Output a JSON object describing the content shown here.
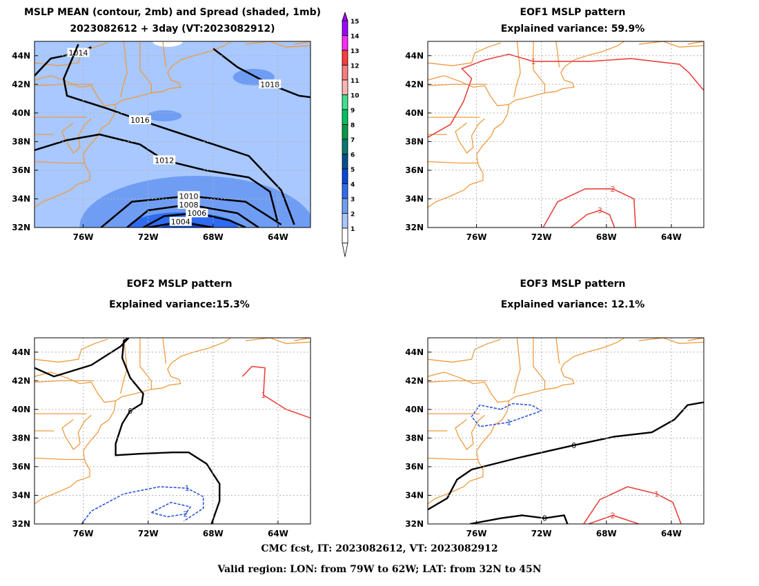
{
  "panels": [
    {
      "id": "mslp",
      "title_line1": "MSLP MEAN (contour, 2mb) and Spread (shaded, 1mb)",
      "title_line2": "2023082612 + 3day (VT:2023082912)"
    },
    {
      "id": "eof1",
      "title_line1": "EOF1 MSLP pattern",
      "title_line2": "Explained variance: 59.9%"
    },
    {
      "id": "eof2",
      "title_line1": "EOF2 MSLP pattern",
      "title_line2": "Explained variance:15.3%"
    },
    {
      "id": "eof3",
      "title_line1": "EOF3 MSLP pattern",
      "title_line2": "Explained variance: 12.1%"
    }
  ],
  "footer": {
    "line1": "CMC fcst, IT: 2023082612, VT: 2023082912",
    "line2": "Valid region: LON: from 79W to 62W; LAT: from 32N to 45N"
  },
  "chart_data": [
    {
      "type": "heatmap",
      "title": "MSLP MEAN (contour, 2mb) and Spread (shaded, 1mb)",
      "subtitle": "2023082612 + 3day (VT:2023082912)",
      "xlim": [
        -79,
        -62
      ],
      "ylim": [
        32,
        45
      ],
      "x_ticks": [
        "76W",
        "72W",
        "68W",
        "64W"
      ],
      "y_ticks": [
        "44N",
        "42N",
        "40N",
        "38N",
        "36N",
        "34N",
        "32N"
      ],
      "grid": true,
      "colorbar": {
        "levels": [
          1,
          2,
          3,
          4,
          5,
          6,
          7,
          8,
          9,
          10,
          11,
          12,
          13,
          14,
          15
        ],
        "colors": [
          "#ffffff",
          "#a8c8ff",
          "#6f9df4",
          "#2f6cf0",
          "#0a47d8",
          "#00508c",
          "#007a6e",
          "#009a46",
          "#00c060",
          "#40e08c",
          "#ffb4b4",
          "#ff7c7c",
          "#ff3c3c",
          "#ff2cff",
          "#a000ff"
        ]
      },
      "spread_field": {
        "background_level": 2,
        "max_level": 5,
        "max_near": {
          "lon": -69,
          "lat": 32
        }
      },
      "contours": [
        {
          "level": 1004,
          "label": "1004",
          "points": [
            [
              -72,
              32
            ],
            [
              -70,
              32.4
            ],
            [
              -68,
              32
            ]
          ]
        },
        {
          "level": 1006,
          "label": "1006",
          "points": [
            [
              -72.3,
              32
            ],
            [
              -71,
              32.8
            ],
            [
              -69,
              33
            ],
            [
              -67,
              32.5
            ],
            [
              -66,
              32
            ]
          ]
        },
        {
          "level": 1008,
          "label": "1008",
          "points": [
            [
              -73.3,
              32
            ],
            [
              -72,
              33.2
            ],
            [
              -69.5,
              33.6
            ],
            [
              -66.5,
              33
            ],
            [
              -65.2,
              32
            ]
          ]
        },
        {
          "level": 1010,
          "label": "1010",
          "points": [
            [
              -74.9,
              32
            ],
            [
              -73,
              33.8
            ],
            [
              -69.5,
              34.2
            ],
            [
              -66,
              33.8
            ],
            [
              -63.8,
              32.2
            ]
          ]
        },
        {
          "level": 1012,
          "label": "1012",
          "points": [
            [
              -79,
              37.4
            ],
            [
              -77,
              38.1
            ],
            [
              -75,
              38.5
            ],
            [
              -72.5,
              37.8
            ],
            [
              -71,
              36.7
            ],
            [
              -68.5,
              36
            ],
            [
              -65.8,
              35.5
            ],
            [
              -64.5,
              34.5
            ],
            [
              -64,
              32.3
            ]
          ]
        },
        {
          "level": 1014,
          "label": "1014",
          "points": [
            [
              -79,
              42.6
            ],
            [
              -78,
              43.8
            ],
            [
              -76.3,
              44.2
            ],
            [
              -75.5,
              44.6
            ]
          ]
        },
        {
          "level": 1016,
          "label": "1016",
          "points": [
            [
              -76.3,
              44.8
            ],
            [
              -77.2,
              42.4
            ],
            [
              -77,
              41.2
            ],
            [
              -74.5,
              40.3
            ],
            [
              -72.5,
              39.5
            ],
            [
              -68.5,
              38
            ],
            [
              -65.8,
              37
            ],
            [
              -63.8,
              34.6
            ],
            [
              -63,
              32.2
            ]
          ]
        },
        {
          "level": 1018,
          "label": "1018",
          "points": [
            [
              -68,
              44.5
            ],
            [
              -66.5,
              43.2
            ],
            [
              -64.5,
              42
            ],
            [
              -62.7,
              41.2
            ],
            [
              -62,
              41.1
            ]
          ]
        }
      ]
    },
    {
      "type": "line",
      "title": "EOF1 MSLP pattern",
      "subtitle": "Explained variance: 59.9%",
      "xlim": [
        -79,
        -62
      ],
      "ylim": [
        32,
        45
      ],
      "x_ticks": [
        "76W",
        "72W",
        "68W",
        "64W"
      ],
      "y_ticks": [
        "44N",
        "42N",
        "40N",
        "38N",
        "36N",
        "34N",
        "32N"
      ],
      "grid": true,
      "contours": [
        {
          "level": 1,
          "label": "1",
          "color": "#e8413c",
          "points": [
            [
              -79,
              38.3
            ],
            [
              -77.6,
              39.2
            ],
            [
              -76.8,
              40.8
            ],
            [
              -76.3,
              42.4
            ],
            [
              -76.9,
              43.1
            ],
            [
              -75.5,
              43.7
            ],
            [
              -74,
              44.1
            ],
            [
              -72.5,
              43.6
            ],
            [
              -69,
              43.6
            ],
            [
              -66.5,
              43.8
            ],
            [
              -63.5,
              43.4
            ],
            [
              -62.9,
              42.8
            ],
            [
              -62.1,
              41.7
            ],
            [
              -62,
              41.6
            ]
          ]
        },
        {
          "level": 1,
          "label": "",
          "color": "#e8413c",
          "points": [
            [
              -62,
              38.3
            ],
            [
              -61.7,
              39
            ]
          ]
        },
        {
          "level": 2,
          "label": "2",
          "color": "#e8413c",
          "points": [
            [
              -71.9,
              32
            ],
            [
              -71,
              33.8
            ],
            [
              -69.3,
              34.7
            ],
            [
              -67.6,
              34.7
            ],
            [
              -66.3,
              34
            ],
            [
              -66.2,
              32
            ]
          ]
        },
        {
          "level": 3,
          "label": "3",
          "color": "#e8413c",
          "points": [
            [
              -70.2,
              32
            ],
            [
              -69.2,
              32.9
            ],
            [
              -68.4,
              33.2
            ],
            [
              -67.8,
              32.9
            ],
            [
              -67.5,
              32
            ]
          ]
        }
      ]
    },
    {
      "type": "line",
      "title": "EOF2 MSLP pattern",
      "subtitle": "Explained variance:15.3%",
      "xlim": [
        -79,
        -62
      ],
      "ylim": [
        32,
        45
      ],
      "x_ticks": [
        "76W",
        "72W",
        "68W",
        "64W"
      ],
      "y_ticks": [
        "44N",
        "42N",
        "40N",
        "38N",
        "36N",
        "34N",
        "32N"
      ],
      "grid": true,
      "contours": [
        {
          "level": 0,
          "label": "0",
          "color": "#000000",
          "points": [
            [
              -79,
              42.9
            ],
            [
              -77.8,
              42.3
            ],
            [
              -75.5,
              43.1
            ],
            [
              -73.7,
              44.4
            ],
            [
              -73.2,
              45
            ],
            [
              -73.5,
              44.8
            ],
            [
              -73.6,
              43.6
            ],
            [
              -73.1,
              42.2
            ],
            [
              -72.3,
              41.1
            ],
            [
              -72.4,
              40.4
            ],
            [
              -73.1,
              39.9
            ],
            [
              -73.6,
              39
            ],
            [
              -74,
              37.6
            ],
            [
              -74,
              36.8
            ],
            [
              -72.5,
              36.9
            ],
            [
              -70.5,
              37
            ],
            [
              -69.5,
              37
            ],
            [
              -68.4,
              36.2
            ],
            [
              -67.6,
              34.8
            ],
            [
              -67.6,
              33.6
            ],
            [
              -68.1,
              32
            ]
          ]
        },
        {
          "level": -1,
          "label": "1",
          "color": "#2850dc",
          "points": [
            [
              -76.1,
              32
            ],
            [
              -75.5,
              32.9
            ],
            [
              -73.5,
              34.1
            ],
            [
              -71.3,
              34.6
            ],
            [
              -69.6,
              34.5
            ],
            [
              -68.6,
              33.9
            ],
            [
              -68.6,
              33.1
            ],
            [
              -69.8,
              32.2
            ]
          ]
        },
        {
          "level": -2,
          "label": "2",
          "color": "#2850dc",
          "points": [
            [
              -71.8,
              32.8
            ],
            [
              -70.6,
              33.5
            ],
            [
              -69.4,
              33.2
            ],
            [
              -69.7,
              32.7
            ],
            [
              -70.8,
              32.5
            ],
            [
              -71.8,
              32.8
            ]
          ]
        },
        {
          "level": 1,
          "label": "1",
          "color": "#e8413c",
          "points": [
            [
              -66.2,
              42.3
            ],
            [
              -65.6,
              43
            ],
            [
              -64.8,
              42.9
            ],
            [
              -64.9,
              41
            ],
            [
              -63.5,
              40
            ],
            [
              -62,
              39.4
            ]
          ]
        }
      ]
    },
    {
      "type": "line",
      "title": "EOF3 MSLP pattern",
      "subtitle": "Explained variance: 12.1%",
      "xlim": [
        -79,
        -62
      ],
      "ylim": [
        32,
        45
      ],
      "x_ticks": [
        "76W",
        "72W",
        "68W",
        "64W"
      ],
      "y_ticks": [
        "44N",
        "42N",
        "40N",
        "38N",
        "36N",
        "34N",
        "32N"
      ],
      "grid": true,
      "contours": [
        {
          "level": 0,
          "label": "0",
          "color": "#000000",
          "points": [
            [
              -79,
              33
            ],
            [
              -77.8,
              33.8
            ],
            [
              -77.2,
              35.1
            ],
            [
              -76.3,
              35.8
            ],
            [
              -73.5,
              36.6
            ],
            [
              -70,
              37.5
            ],
            [
              -67.5,
              38.1
            ],
            [
              -65.2,
              38.4
            ],
            [
              -63.8,
              39.3
            ],
            [
              -63,
              40.3
            ],
            [
              -62,
              40.5
            ]
          ]
        },
        {
          "level": 0,
          "label": "0",
          "color": "#000000",
          "points": [
            [
              -76.4,
              32
            ],
            [
              -74.5,
              32.4
            ],
            [
              -73.2,
              32.6
            ],
            [
              -71.8,
              32.4
            ],
            [
              -70.6,
              32.6
            ],
            [
              -70.4,
              32
            ]
          ]
        },
        {
          "level": -1,
          "label": "1",
          "color": "#2850dc",
          "points": [
            [
              -74.5,
              40
            ],
            [
              -73.8,
              40.4
            ],
            [
              -72.6,
              40.3
            ],
            [
              -72,
              39.9
            ],
            [
              -73,
              39.5
            ],
            [
              -74,
              39.1
            ],
            [
              -75.8,
              38.8
            ],
            [
              -76.3,
              39.5
            ],
            [
              -75.8,
              40.3
            ],
            [
              -74.5,
              40
            ]
          ]
        },
        {
          "level": 1,
          "label": "1",
          "color": "#e8413c",
          "points": [
            [
              -69.4,
              32
            ],
            [
              -68.4,
              33.7
            ],
            [
              -66.7,
              34.6
            ],
            [
              -64.9,
              34.1
            ],
            [
              -63.9,
              33.5
            ],
            [
              -63.4,
              32
            ]
          ]
        },
        {
          "level": 2,
          "label": "2",
          "color": "#e8413c",
          "points": [
            [
              -69.1,
              32
            ],
            [
              -67.6,
              32.6
            ],
            [
              -66,
              32
            ]
          ]
        }
      ]
    }
  ]
}
